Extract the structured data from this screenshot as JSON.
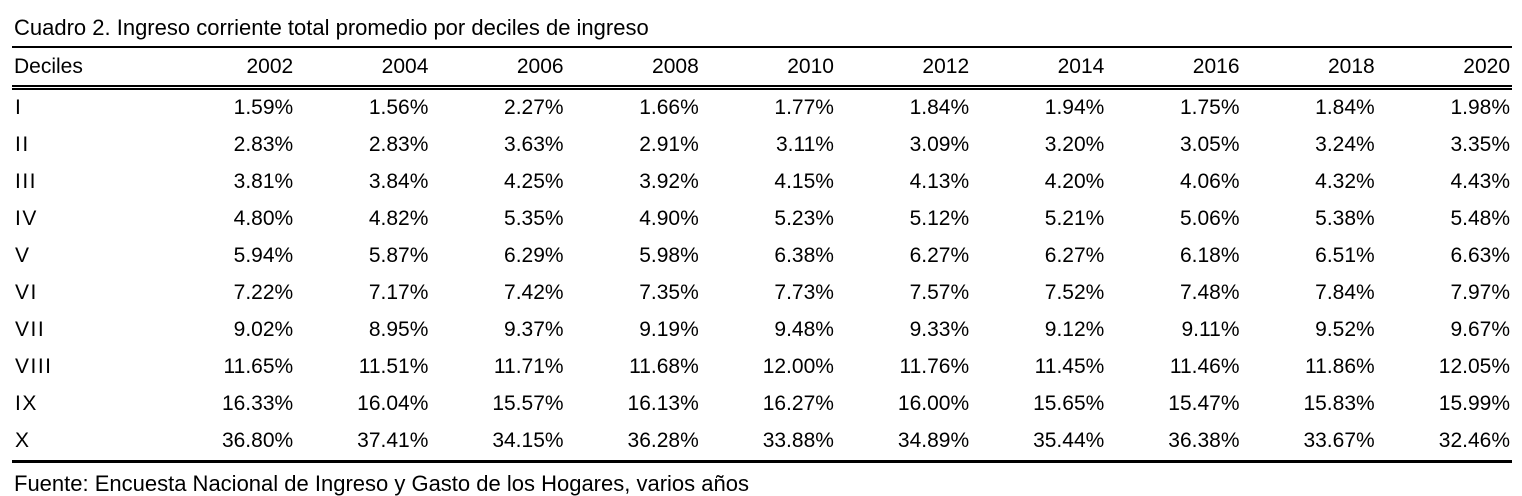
{
  "table": {
    "title": "Cuadro 2. Ingreso corriente total promedio por deciles de ingreso",
    "columns": [
      "Deciles",
      "2002",
      "2004",
      "2006",
      "2008",
      "2010",
      "2012",
      "2014",
      "2016",
      "2018",
      "2020"
    ],
    "rows": [
      {
        "decile": "I",
        "values": [
          "1.59%",
          "1.56%",
          "2.27%",
          "1.66%",
          "1.77%",
          "1.84%",
          "1.94%",
          "1.75%",
          "1.84%",
          "1.98%"
        ]
      },
      {
        "decile": "II",
        "values": [
          "2.83%",
          "2.83%",
          "3.63%",
          "2.91%",
          "3.11%",
          "3.09%",
          "3.20%",
          "3.05%",
          "3.24%",
          "3.35%"
        ]
      },
      {
        "decile": "III",
        "values": [
          "3.81%",
          "3.84%",
          "4.25%",
          "3.92%",
          "4.15%",
          "4.13%",
          "4.20%",
          "4.06%",
          "4.32%",
          "4.43%"
        ]
      },
      {
        "decile": "IV",
        "values": [
          "4.80%",
          "4.82%",
          "5.35%",
          "4.90%",
          "5.23%",
          "5.12%",
          "5.21%",
          "5.06%",
          "5.38%",
          "5.48%"
        ]
      },
      {
        "decile": "V",
        "values": [
          "5.94%",
          "5.87%",
          "6.29%",
          "5.98%",
          "6.38%",
          "6.27%",
          "6.27%",
          "6.18%",
          "6.51%",
          "6.63%"
        ]
      },
      {
        "decile": "VI",
        "values": [
          "7.22%",
          "7.17%",
          "7.42%",
          "7.35%",
          "7.73%",
          "7.57%",
          "7.52%",
          "7.48%",
          "7.84%",
          "7.97%"
        ]
      },
      {
        "decile": "VII",
        "values": [
          "9.02%",
          "8.95%",
          "9.37%",
          "9.19%",
          "9.48%",
          "9.33%",
          "9.12%",
          "9.11%",
          "9.52%",
          "9.67%"
        ]
      },
      {
        "decile": "VIII",
        "values": [
          "11.65%",
          "11.51%",
          "11.71%",
          "11.68%",
          "12.00%",
          "11.76%",
          "11.45%",
          "11.46%",
          "11.86%",
          "12.05%"
        ]
      },
      {
        "decile": "IX",
        "values": [
          "16.33%",
          "16.04%",
          "15.57%",
          "16.13%",
          "16.27%",
          "16.00%",
          "15.65%",
          "15.47%",
          "15.83%",
          "15.99%"
        ]
      },
      {
        "decile": "X",
        "values": [
          "36.80%",
          "37.41%",
          "34.15%",
          "36.28%",
          "33.88%",
          "34.89%",
          "35.44%",
          "36.38%",
          "33.67%",
          "32.46%"
        ]
      }
    ],
    "source": "Fuente: Encuesta Nacional de Ingreso y Gasto de los Hogares, varios años"
  },
  "chart_data": {
    "type": "table",
    "title": "Cuadro 2. Ingreso corriente total promedio por deciles de ingreso",
    "categories": [
      "2002",
      "2004",
      "2006",
      "2008",
      "2010",
      "2012",
      "2014",
      "2016",
      "2018",
      "2020"
    ],
    "unit": "%",
    "series": [
      {
        "name": "I",
        "values": [
          1.59,
          1.56,
          2.27,
          1.66,
          1.77,
          1.84,
          1.94,
          1.75,
          1.84,
          1.98
        ]
      },
      {
        "name": "II",
        "values": [
          2.83,
          2.83,
          3.63,
          2.91,
          3.11,
          3.09,
          3.2,
          3.05,
          3.24,
          3.35
        ]
      },
      {
        "name": "III",
        "values": [
          3.81,
          3.84,
          4.25,
          3.92,
          4.15,
          4.13,
          4.2,
          4.06,
          4.32,
          4.43
        ]
      },
      {
        "name": "IV",
        "values": [
          4.8,
          4.82,
          5.35,
          4.9,
          5.23,
          5.12,
          5.21,
          5.06,
          5.38,
          5.48
        ]
      },
      {
        "name": "V",
        "values": [
          5.94,
          5.87,
          6.29,
          5.98,
          6.38,
          6.27,
          6.27,
          6.18,
          6.51,
          6.63
        ]
      },
      {
        "name": "VI",
        "values": [
          7.22,
          7.17,
          7.42,
          7.35,
          7.73,
          7.57,
          7.52,
          7.48,
          7.84,
          7.97
        ]
      },
      {
        "name": "VII",
        "values": [
          9.02,
          8.95,
          9.37,
          9.19,
          9.48,
          9.33,
          9.12,
          9.11,
          9.52,
          9.67
        ]
      },
      {
        "name": "VIII",
        "values": [
          11.65,
          11.51,
          11.71,
          11.68,
          12.0,
          11.76,
          11.45,
          11.46,
          11.86,
          12.05
        ]
      },
      {
        "name": "IX",
        "values": [
          16.33,
          16.04,
          15.57,
          16.13,
          16.27,
          16.0,
          15.65,
          15.47,
          15.83,
          15.99
        ]
      },
      {
        "name": "X",
        "values": [
          36.8,
          37.41,
          34.15,
          36.28,
          33.88,
          34.89,
          35.44,
          36.38,
          33.67,
          32.46
        ]
      }
    ],
    "source": "Fuente: Encuesta Nacional de Ingreso y Gasto de los Hogares, varios años"
  }
}
